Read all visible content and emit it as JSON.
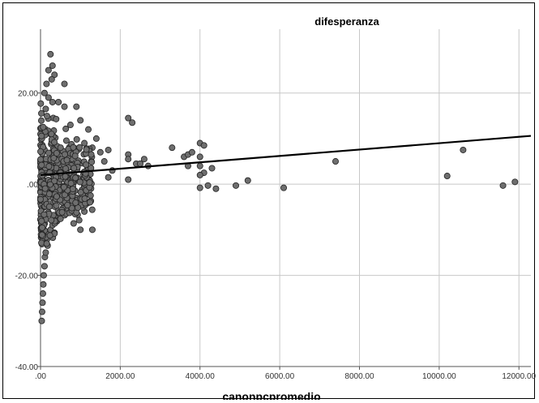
{
  "chart_data": {
    "type": "scatter",
    "title": "",
    "series_label": "difesperanza",
    "xlabel": "canonpcpromedio",
    "ylabel": "",
    "xlim": [
      0,
      12300
    ],
    "ylim": [
      -40,
      34
    ],
    "xticks": [
      0,
      2000,
      4000,
      6000,
      8000,
      10000,
      12000
    ],
    "xtick_labels": [
      ".00",
      "2000.00",
      "4000.00",
      "6000.00",
      "8000.00",
      "10000.00",
      "12000.00"
    ],
    "yticks": [
      20,
      0,
      -20,
      -40
    ],
    "ytick_labels": [
      "20.00",
      ".00",
      "-20.00",
      "-40.00"
    ],
    "grid": true,
    "marker_color": "#6e6e6e",
    "line_color": "#000000",
    "fit_line": {
      "x": [
        0,
        12300
      ],
      "y": [
        2.0,
        10.6
      ]
    },
    "points": [
      {
        "x": 2200,
        "y": 14.5
      },
      {
        "x": 2300,
        "y": 13.5
      },
      {
        "x": 2200,
        "y": 6.5
      },
      {
        "x": 2200,
        "y": 5.5
      },
      {
        "x": 2400,
        "y": 4.5
      },
      {
        "x": 2500,
        "y": 4.5
      },
      {
        "x": 2600,
        "y": 5.5
      },
      {
        "x": 2700,
        "y": 4.0
      },
      {
        "x": 2200,
        "y": 1.0
      },
      {
        "x": 3300,
        "y": 8.0
      },
      {
        "x": 3600,
        "y": 6.0
      },
      {
        "x": 3700,
        "y": 6.5
      },
      {
        "x": 3800,
        "y": 7.0
      },
      {
        "x": 3700,
        "y": 4.0
      },
      {
        "x": 4000,
        "y": 9.0
      },
      {
        "x": 4100,
        "y": 8.5
      },
      {
        "x": 4000,
        "y": 6.0
      },
      {
        "x": 4000,
        "y": 4.0
      },
      {
        "x": 4300,
        "y": 3.5
      },
      {
        "x": 4100,
        "y": 2.5
      },
      {
        "x": 4000,
        "y": 2.0
      },
      {
        "x": 4000,
        "y": -0.8
      },
      {
        "x": 4200,
        "y": -0.3
      },
      {
        "x": 4400,
        "y": -1.0
      },
      {
        "x": 4900,
        "y": -0.3
      },
      {
        "x": 5200,
        "y": 0.8
      },
      {
        "x": 6100,
        "y": -0.8
      },
      {
        "x": 7400,
        "y": 5.0
      },
      {
        "x": 10200,
        "y": 1.8
      },
      {
        "x": 10600,
        "y": 7.5
      },
      {
        "x": 11600,
        "y": -0.3
      },
      {
        "x": 11900,
        "y": 0.5
      },
      {
        "x": 30,
        "y": -30
      },
      {
        "x": 40,
        "y": -28
      },
      {
        "x": 50,
        "y": -26
      },
      {
        "x": 60,
        "y": -24
      },
      {
        "x": 70,
        "y": -22
      },
      {
        "x": 80,
        "y": -20
      },
      {
        "x": 100,
        "y": -18
      },
      {
        "x": 110,
        "y": -16
      },
      {
        "x": 130,
        "y": -15
      },
      {
        "x": 150,
        "y": -13
      },
      {
        "x": 170,
        "y": -12
      },
      {
        "x": 200,
        "y": -11
      },
      {
        "x": 250,
        "y": -10
      },
      {
        "x": 300,
        "y": -9
      },
      {
        "x": 350,
        "y": -8
      },
      {
        "x": 420,
        "y": -7
      },
      {
        "x": 500,
        "y": -7
      },
      {
        "x": 600,
        "y": -6
      },
      {
        "x": 700,
        "y": -5
      },
      {
        "x": 800,
        "y": -4
      },
      {
        "x": 900,
        "y": -3
      },
      {
        "x": 1000,
        "y": -10
      },
      {
        "x": 1300,
        "y": -10
      },
      {
        "x": 1100,
        "y": -6
      },
      {
        "x": 250,
        "y": 28.5
      },
      {
        "x": 300,
        "y": 26
      },
      {
        "x": 200,
        "y": 25
      },
      {
        "x": 350,
        "y": 24
      },
      {
        "x": 280,
        "y": 23
      },
      {
        "x": 150,
        "y": 22
      },
      {
        "x": 600,
        "y": 22
      },
      {
        "x": 100,
        "y": 20
      },
      {
        "x": 200,
        "y": 19
      },
      {
        "x": 300,
        "y": 18
      },
      {
        "x": 450,
        "y": 18
      },
      {
        "x": 600,
        "y": 17
      },
      {
        "x": 900,
        "y": 17
      },
      {
        "x": 1000,
        "y": 14
      },
      {
        "x": 750,
        "y": 13
      },
      {
        "x": 1200,
        "y": 12
      },
      {
        "x": 1400,
        "y": 10
      },
      {
        "x": 1100,
        "y": 9
      },
      {
        "x": 1300,
        "y": 8
      },
      {
        "x": 1500,
        "y": 7
      },
      {
        "x": 1700,
        "y": 7.5
      },
      {
        "x": 1600,
        "y": 5
      },
      {
        "x": 1800,
        "y": 3
      },
      {
        "x": 1700,
        "y": 1.5
      },
      {
        "x": 1200,
        "y": 2
      },
      {
        "x": 1000,
        "y": 1
      },
      {
        "x": 800,
        "y": 0
      },
      {
        "x": 600,
        "y": -1
      },
      {
        "x": 500,
        "y": -2
      },
      {
        "x": 400,
        "y": -3
      }
    ]
  }
}
